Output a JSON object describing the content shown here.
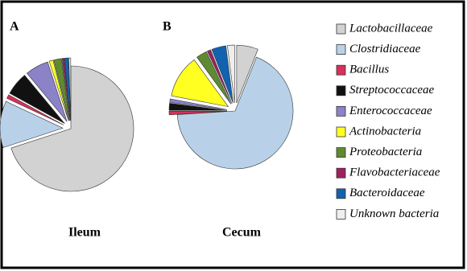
{
  "legend": {
    "names": [
      "Lactobacillaceae",
      "Clostridiaceae",
      "Bacillus",
      "Streptococcaceae",
      "Enterococcaceae",
      "Actinobacteria",
      "Proteobacteria",
      "Flavobacteriaceae",
      "Bacteroidaceae",
      "Unknown bacteria"
    ],
    "colors": [
      "#d2d2d2",
      "#b9d1e8",
      "#d8305a",
      "#111111",
      "#8c82c8",
      "#ffff22",
      "#5f8a30",
      "#a02060",
      "#1262b0",
      "#eeeeee"
    ]
  },
  "chart_data": [
    {
      "type": "pie",
      "title": "A",
      "xlabel": "Ileum",
      "values": [
        70,
        12,
        1,
        6,
        6,
        1,
        2,
        0.5,
        1,
        0.5
      ]
    },
    {
      "type": "pie",
      "title": "B",
      "xlabel": "Cecum",
      "values": [
        6,
        68,
        1,
        2,
        1,
        12,
        3,
        1,
        4,
        2
      ]
    }
  ]
}
